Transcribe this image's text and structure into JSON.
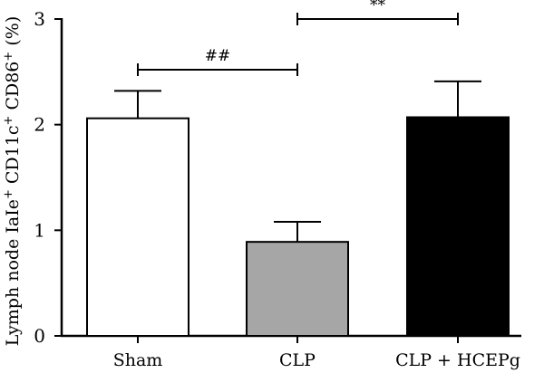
{
  "chart_data": {
    "type": "bar",
    "title": "",
    "xlabel": "",
    "ylabel": {
      "prefix": "Lymph node IaIe",
      "sup1": "+",
      "mid1": " CD11c",
      "sup2": "+",
      "mid2": " CD86",
      "sup3": "+",
      "suffix": " (%)"
    },
    "ylim": [
      0,
      3
    ],
    "yticks": [
      "0",
      "1",
      "2",
      "3"
    ],
    "categories": [
      "Sham",
      "CLP",
      "CLP + HCEPg"
    ],
    "values": [
      2.06,
      0.89,
      2.07
    ],
    "errors": [
      0.26,
      0.19,
      0.34
    ],
    "bar_colors": [
      "#ffffff",
      "#a6a6a6",
      "#000000"
    ],
    "grid": false,
    "legend": "none",
    "significance": [
      {
        "from": 0,
        "to": 1,
        "label": "##",
        "y": 2.52
      },
      {
        "from": 1,
        "to": 2,
        "label": "**",
        "y": 3.0
      }
    ]
  }
}
